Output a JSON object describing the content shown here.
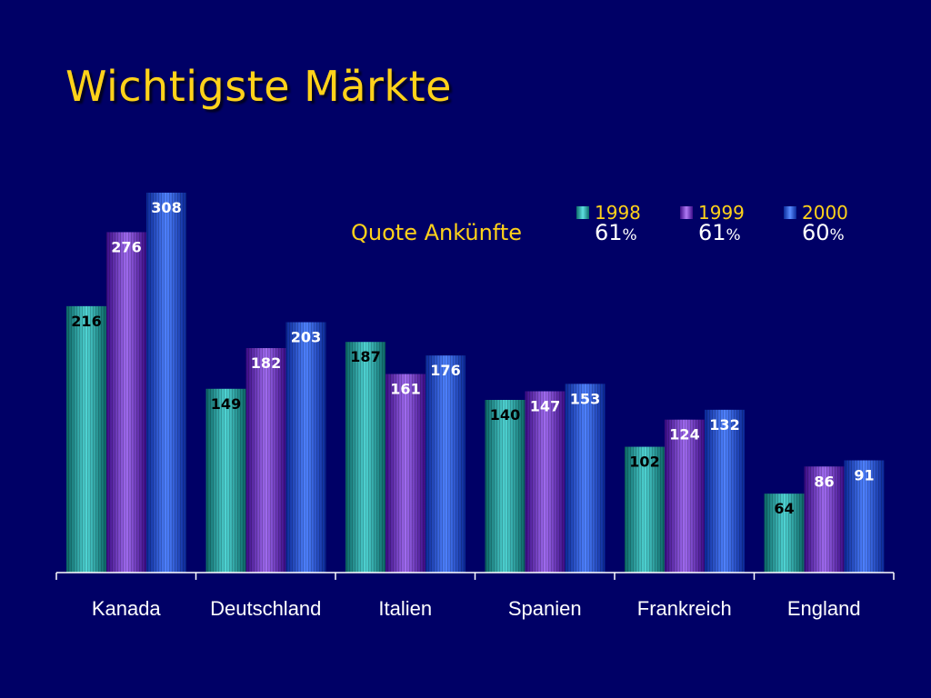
{
  "title": "Wichtigste Märkte",
  "quote": {
    "label": "Quote Ankünfte",
    "values": [
      {
        "num": "61",
        "pct": "%"
      },
      {
        "num": "61",
        "pct": "%"
      },
      {
        "num": "60",
        "pct": "%"
      }
    ]
  },
  "colors": {
    "background": "#000066",
    "title": "#ffd21a",
    "series": [
      "#1fa8a8",
      "#7a2bd6",
      "#1f57e6"
    ]
  },
  "chart_data": {
    "type": "bar",
    "title": "Wichtigste Märkte",
    "categories": [
      "Kanada",
      "Deutschland",
      "Italien",
      "Spanien",
      "Frankreich",
      "England"
    ],
    "series": [
      {
        "name": "1998",
        "values": [
          216,
          149,
          187,
          140,
          102,
          64
        ]
      },
      {
        "name": "1999",
        "values": [
          276,
          182,
          161,
          147,
          124,
          86
        ]
      },
      {
        "name": "2000",
        "values": [
          308,
          203,
          176,
          153,
          132,
          91
        ]
      }
    ],
    "xlabel": "",
    "ylabel": "",
    "ylim": [
      0,
      308
    ],
    "grid": false,
    "legend": "top-right"
  }
}
